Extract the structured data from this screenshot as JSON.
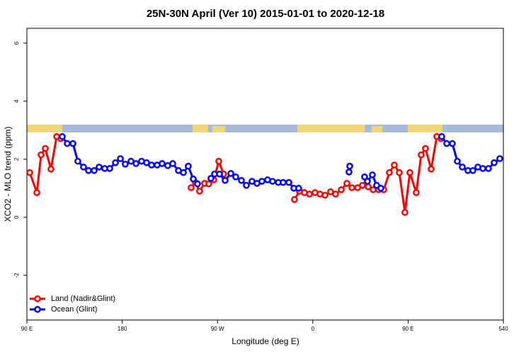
{
  "chart_data": {
    "type": "line",
    "title": "25N-30N April (Ver 10)   2015-01-01 to 2020-12-18",
    "x_label": "Longitude (deg E)",
    "y_label": "XCO2 - MLO trend (ppm)",
    "xlim": [
      90,
      540
    ],
    "ylim": [
      -3.54,
      6.51
    ],
    "xticks": [
      {
        "value": 90,
        "label": "90 E"
      },
      180,
      {
        "value": 270,
        "label": "90 W"
      },
      {
        "value": 360,
        "label": "0"
      },
      {
        "value": 450,
        "label": "90 E"
      },
      540
    ],
    "yticks": [
      -2,
      0,
      2,
      4,
      6
    ],
    "legend": "bottomleft",
    "series": [
      {
        "name": "Land (Nadir&Glint)",
        "color": "#ff0000",
        "x": [
          92.7,
          99.4,
          103.4,
          107.4,
          112.7,
          118.1,
          122.1,
          null,
          245.1,
          249.1,
          253.1,
          257.8,
          261.8,
          266.5,
          271.2,
          275.8,
          null,
          342.7,
          347.4,
          352.1,
          356.8,
          362.1,
          366.8,
          371.5,
          376.8,
          381.5,
          386.9,
          392.2,
          396.9,
          402.3,
          406.9,
          412.3,
          417.0,
          422.3,
          427.0,
          432.3,
          437.0,
          441.7,
          447.0,
          451.7,
          457.7,
          462.4,
          466.4,
          471.8,
          477.1,
          481.1
        ],
        "values": [
          1.54,
          0.85,
          2.15,
          2.37,
          1.66,
          2.78,
          2.71,
          null,
          1.02,
          1.2,
          0.9,
          1.17,
          1.15,
          1.29,
          1.93,
          1.49,
          null,
          0.61,
          0.9,
          0.85,
          0.8,
          0.85,
          0.8,
          0.76,
          0.88,
          0.8,
          0.95,
          1.17,
          1.02,
          1.02,
          1.1,
          1.05,
          0.95,
          0.95,
          0.95,
          1.54,
          1.8,
          1.54,
          0.17,
          1.54,
          0.85,
          2.15,
          2.37,
          1.66,
          2.78,
          2.71
        ]
      },
      {
        "name": "Ocean (Glint)",
        "color": "#0000ff",
        "x": [
          123.4,
          128.1,
          133.5,
          138.1,
          143.5,
          148.2,
          153.5,
          158.2,
          163.5,
          168.2,
          173.6,
          178.3,
          182.9,
          188.3,
          193.0,
          198.3,
          203.0,
          207.7,
          213.0,
          217.7,
          223.0,
          227.7,
          233.1,
          237.8,
          242.4,
          247.1,
          251.1,
          null,
          263.8,
          267.2,
          271.9,
          277.2,
          282.6,
          287.2,
          292.6,
          297.3,
          302.6,
          307.3,
          312.0,
          317.3,
          322.0,
          327.4,
          332.0,
          337.4,
          342.1,
          346.7,
          null,
          394.2,
          394.9,
          null,
          408.9,
          411.6,
          416.3,
          420.3,
          424.3,
          null,
          481.8,
          486.5,
          491.8,
          496.5,
          501.2,
          506.5,
          511.2,
          515.9,
          520.6,
          525.9,
          531.3,
          536.6
        ],
        "values": [
          2.78,
          2.54,
          2.54,
          1.93,
          1.73,
          1.61,
          1.61,
          1.73,
          1.68,
          1.68,
          1.88,
          2.02,
          1.83,
          1.93,
          1.85,
          1.93,
          1.88,
          1.8,
          1.8,
          1.85,
          1.78,
          1.85,
          1.61,
          1.54,
          1.76,
          1.32,
          1.15,
          null,
          1.34,
          1.49,
          1.49,
          1.27,
          1.51,
          1.39,
          1.27,
          1.1,
          1.24,
          1.17,
          1.24,
          1.29,
          1.24,
          1.2,
          1.2,
          1.2,
          1.0,
          1.0,
          null,
          1.56,
          1.76,
          null,
          1.39,
          1.24,
          1.46,
          1.1,
          1.0,
          null,
          2.78,
          2.54,
          2.54,
          1.93,
          1.73,
          1.61,
          1.61,
          1.73,
          1.68,
          1.68,
          1.88,
          2.02
        ]
      }
    ]
  }
}
